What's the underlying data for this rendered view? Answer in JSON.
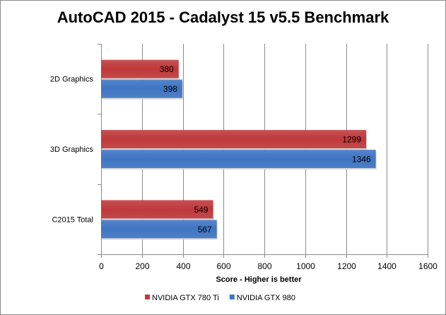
{
  "chart_data": {
    "type": "bar",
    "orientation": "horizontal",
    "title": "AutoCAD 2015 - Cadalyst 15 v5.5 Benchmark",
    "categories": [
      "2D Graphics",
      "3D Graphics",
      "C2015 Total"
    ],
    "series": [
      {
        "name": "NVIDIA GTX 780 Ti",
        "color": "#c0393b",
        "values": [
          380,
          1299,
          549
        ]
      },
      {
        "name": "NVIDIA GTX 980",
        "color": "#3f75c4",
        "values": [
          398,
          1346,
          567
        ]
      }
    ],
    "xlabel": "Score - Higher is better",
    "ylabel": "",
    "xlim": [
      0,
      1600
    ],
    "xticks": [
      0,
      200,
      400,
      600,
      800,
      1000,
      1200,
      1400,
      1600
    ],
    "grid": true,
    "legend": "bottom"
  }
}
